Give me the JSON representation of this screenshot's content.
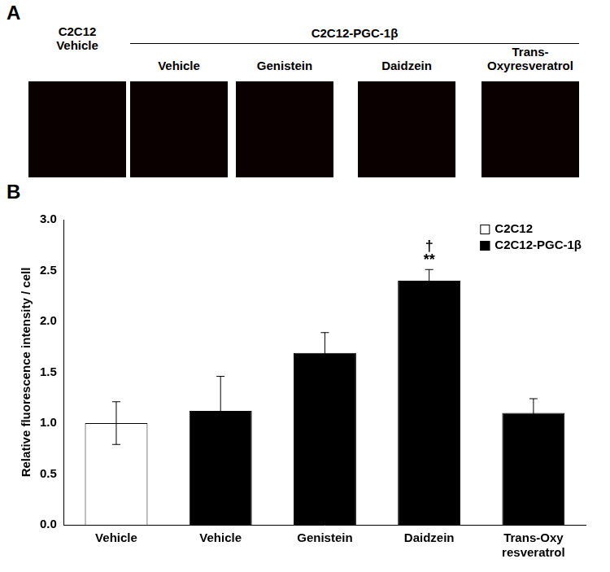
{
  "panel_a": {
    "label": "A",
    "group_label": "C2C12-PGC-1β",
    "image_labels": [
      "C2C12\nVehicle",
      "Vehicle",
      "Genistein",
      "Daidzein",
      "Trans-\nOxyresveratrol"
    ]
  },
  "chart_data": {
    "type": "bar",
    "panel_label": "B",
    "y_label": "Relative fluorescence intensity / cell",
    "categories": [
      "Vehicle",
      "Vehicle",
      "Genistein",
      "Daidzein",
      "Trans-Oxy\nresveratrol"
    ],
    "series": [
      {
        "name": "C2C12",
        "color": "#ffffff",
        "values": [
          1.0,
          null,
          null,
          null,
          null
        ],
        "errors": [
          0.21,
          null,
          null,
          null,
          null
        ]
      },
      {
        "name": "C2C12-PGC-1β",
        "color": "#000000",
        "values": [
          null,
          1.12,
          1.69,
          2.4,
          1.1
        ],
        "errors": [
          null,
          0.34,
          0.2,
          0.11,
          0.14
        ]
      }
    ],
    "significance": [
      null,
      null,
      null,
      [
        "†",
        "**"
      ],
      null
    ],
    "ylim": [
      0,
      3
    ],
    "yticks": [
      {
        "value": 0,
        "label": "0.0"
      },
      {
        "value": 0.5,
        "label": "0.5"
      },
      {
        "value": 1,
        "label": "1.0"
      },
      {
        "value": 1.5,
        "label": "1.5"
      },
      {
        "value": 2,
        "label": "2.0"
      },
      {
        "value": 2.5,
        "label": "2.5"
      },
      {
        "value": 3,
        "label": "3.0"
      }
    ],
    "grid": false,
    "legend": "upper right"
  }
}
